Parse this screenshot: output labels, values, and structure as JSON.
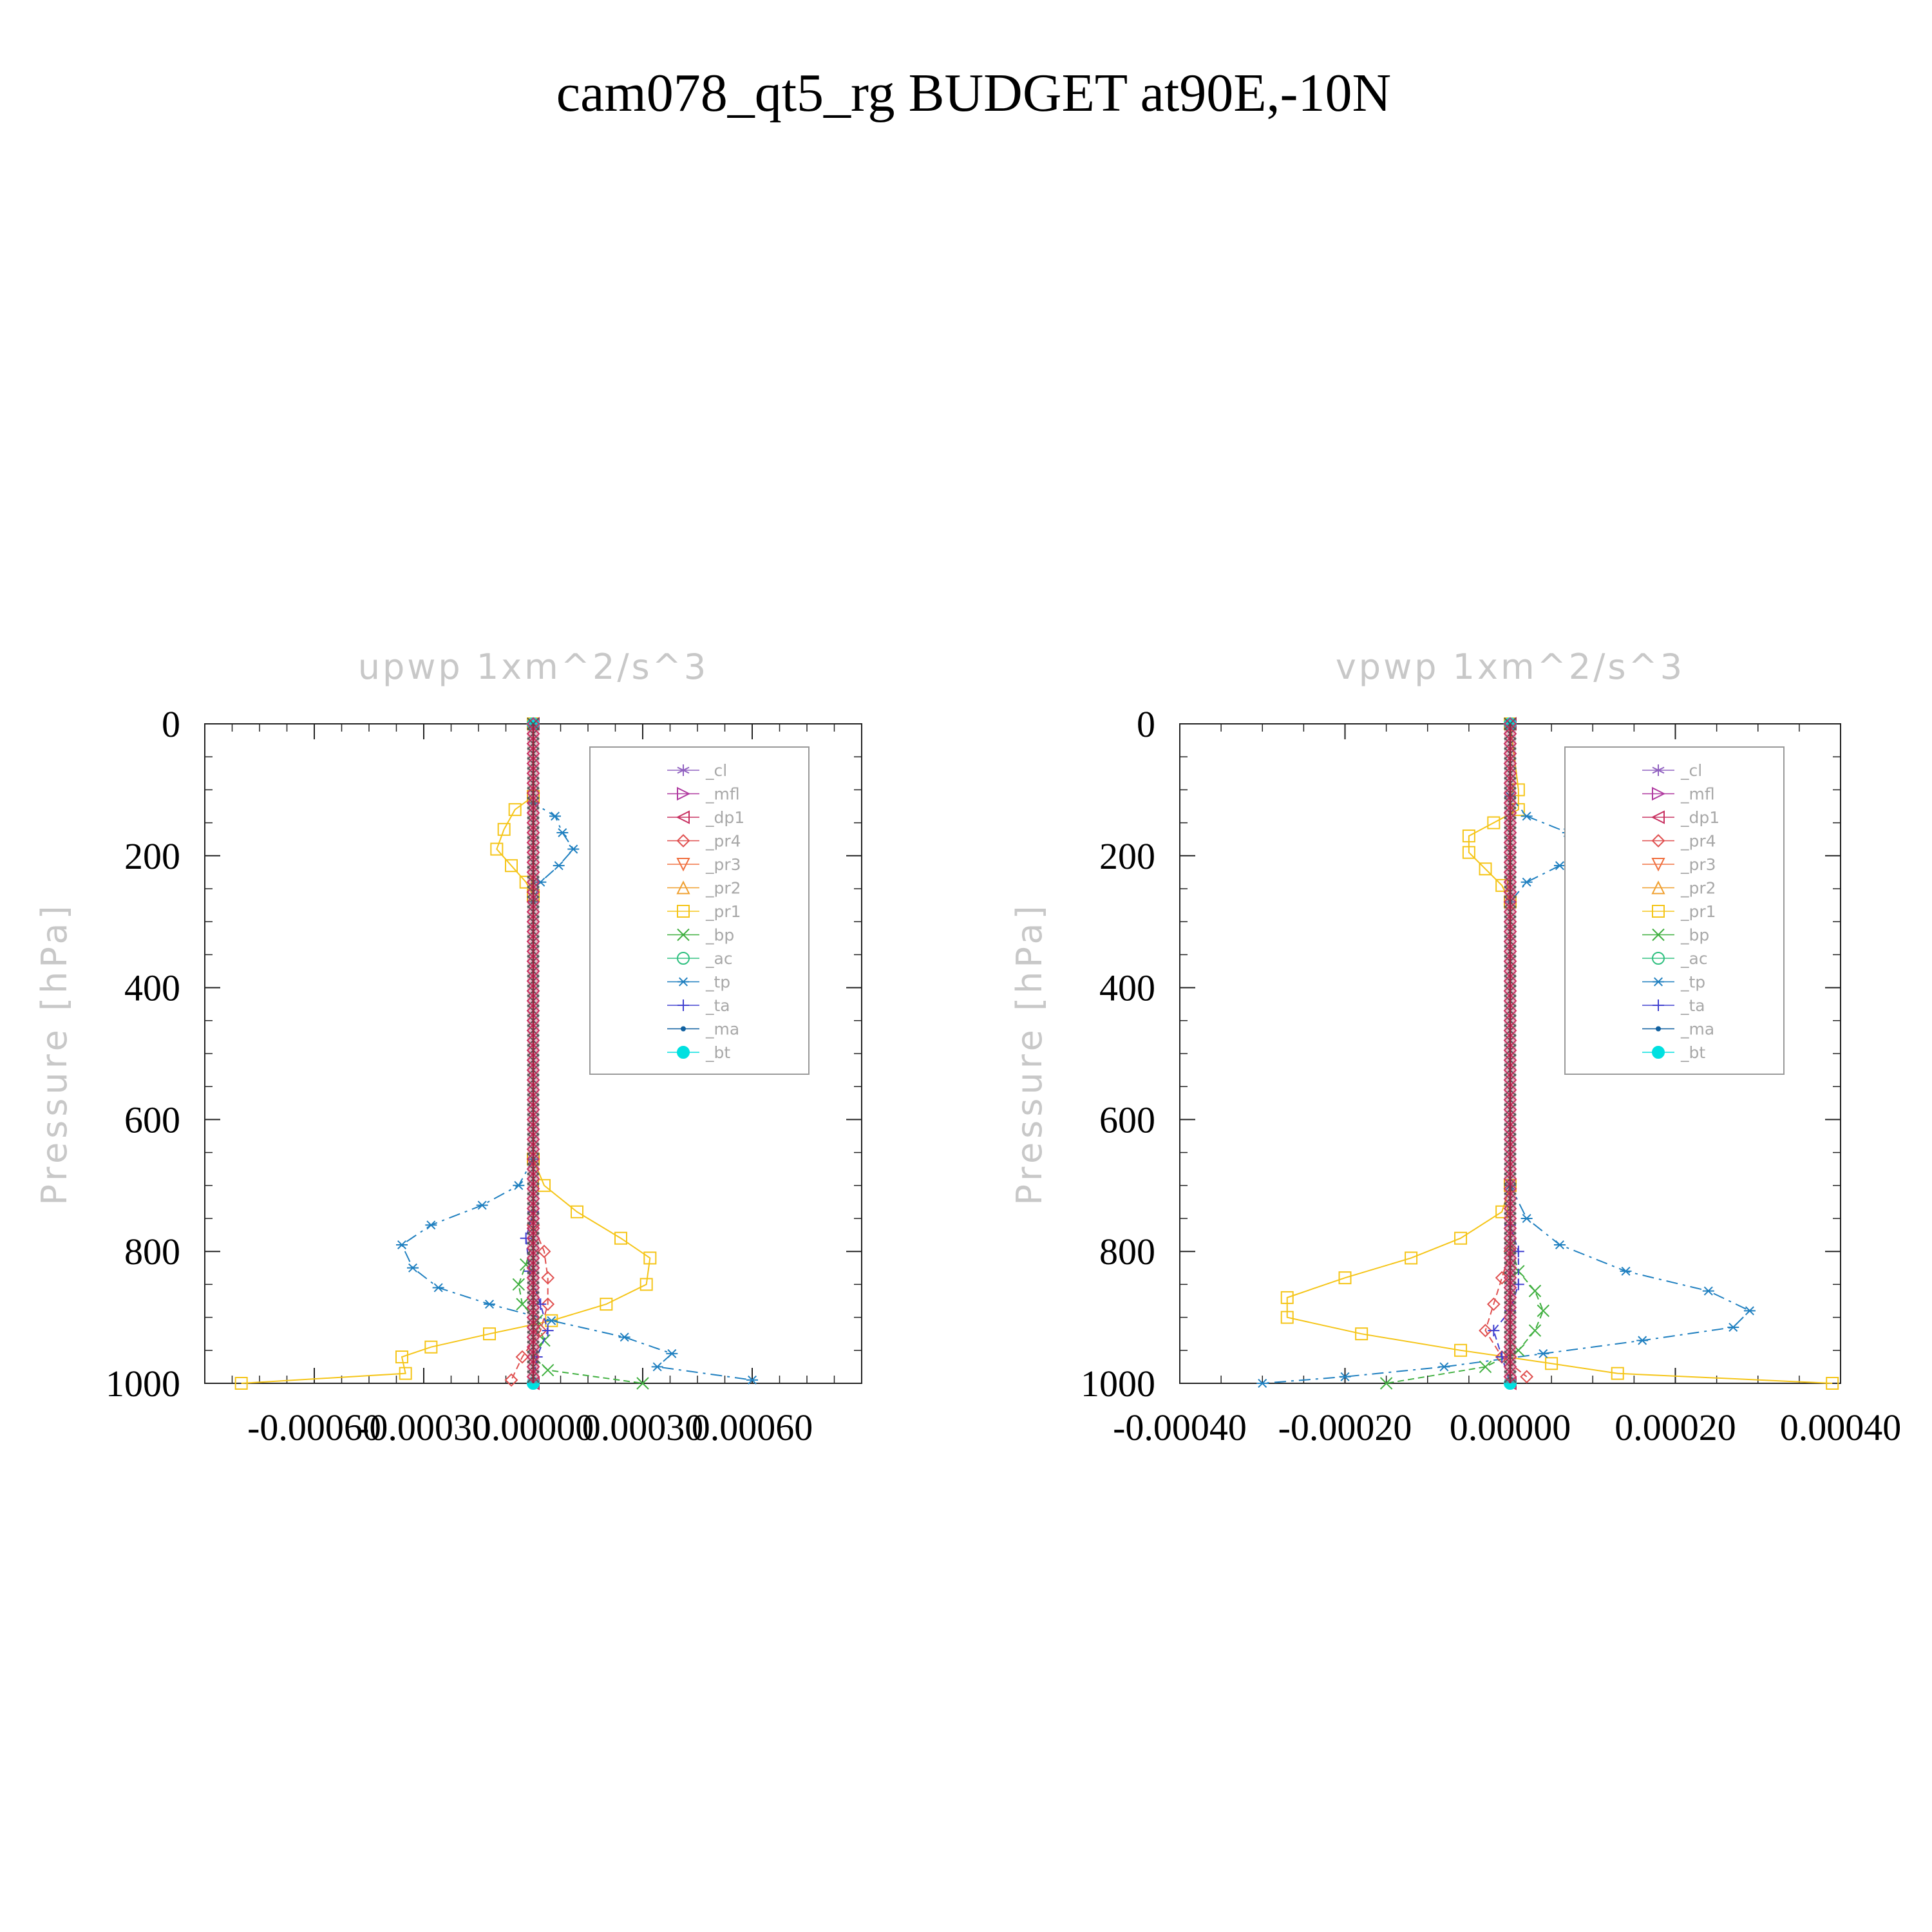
{
  "title": "cam078_qt5_rg  BUDGET at90E,-10N",
  "legend": [
    {
      "name": "_cl",
      "color": "#9060c0",
      "marker": "star"
    },
    {
      "name": "_mfl",
      "color": "#b03aa0",
      "marker": "tri-right"
    },
    {
      "name": "_dp1",
      "color": "#c83060",
      "marker": "tri-left"
    },
    {
      "name": "_pr4",
      "color": "#e05050",
      "marker": "diamond"
    },
    {
      "name": "_pr3",
      "color": "#f07040",
      "marker": "tri-down"
    },
    {
      "name": "_pr2",
      "color": "#f0a030",
      "marker": "tri-up"
    },
    {
      "name": "_pr1",
      "color": "#f5c518",
      "marker": "square"
    },
    {
      "name": "_bp",
      "color": "#40b040",
      "marker": "x"
    },
    {
      "name": "_ac",
      "color": "#30c080",
      "marker": "circle"
    },
    {
      "name": "_tp",
      "color": "#2080c0",
      "marker": "asterisk"
    },
    {
      "name": "_ta",
      "color": "#4040d0",
      "marker": "plus"
    },
    {
      "name": "_ma",
      "color": "#1060a0",
      "marker": "dot"
    },
    {
      "name": "_bt",
      "color": "#00e0e0",
      "marker": "filled-circle"
    }
  ],
  "chart_data": [
    {
      "type": "line",
      "title": "upwp   1xm^2/s^3",
      "ylabel": "Pressure [hPa]",
      "xlim": [
        -0.0009,
        0.0009
      ],
      "ylim": [
        1000,
        0
      ],
      "y_inverted": true,
      "xticks": [
        -0.0006,
        -0.0003,
        0.0,
        0.0003,
        0.0006
      ],
      "xtick_labels": [
        "-0.00060",
        "-0.00030",
        "0.00000",
        "0.00030",
        "0.00060"
      ],
      "yticks": [
        0,
        200,
        400,
        600,
        800,
        1000
      ],
      "ytick_labels": [
        "0",
        "200",
        "400",
        "600",
        "800",
        "1000"
      ],
      "legend_position": "upper-right",
      "series": [
        {
          "name": "_pr1",
          "color": "#f5c518",
          "marker": "square",
          "points": [
            [
              0,
              0
            ],
            [
              0,
              110
            ],
            [
              -5e-05,
              130
            ],
            [
              -8e-05,
              160
            ],
            [
              -0.0001,
              190
            ],
            [
              -6e-05,
              215
            ],
            [
              -2e-05,
              240
            ],
            [
              0,
              260
            ],
            [
              0,
              660
            ],
            [
              3e-05,
              700
            ],
            [
              0.00012,
              740
            ],
            [
              0.00024,
              780
            ],
            [
              0.00032,
              810
            ],
            [
              0.00031,
              850
            ],
            [
              0.0002,
              880
            ],
            [
              5e-05,
              905
            ],
            [
              -0.00012,
              925
            ],
            [
              -0.00028,
              945
            ],
            [
              -0.00036,
              960
            ],
            [
              -0.00035,
              985
            ],
            [
              -0.0008,
              1000
            ]
          ]
        },
        {
          "name": "_tp",
          "color": "#2080c0",
          "marker": "asterisk",
          "points": [
            [
              0,
              0
            ],
            [
              0,
              120
            ],
            [
              6e-05,
              140
            ],
            [
              8e-05,
              165
            ],
            [
              0.00011,
              190
            ],
            [
              7e-05,
              215
            ],
            [
              2e-05,
              240
            ],
            [
              0,
              270
            ],
            [
              0,
              660
            ],
            [
              -4e-05,
              700
            ],
            [
              -0.00014,
              730
            ],
            [
              -0.00028,
              760
            ],
            [
              -0.00036,
              790
            ],
            [
              -0.00033,
              825
            ],
            [
              -0.00026,
              855
            ],
            [
              -0.00012,
              880
            ],
            [
              5e-05,
              905
            ],
            [
              0.00025,
              930
            ],
            [
              0.00038,
              955
            ],
            [
              0.00034,
              975
            ],
            [
              0.0006,
              995
            ]
          ]
        },
        {
          "name": "_bp",
          "color": "#40b040",
          "marker": "x",
          "points": [
            [
              0,
              0
            ],
            [
              0,
              780
            ],
            [
              -2e-05,
              820
            ],
            [
              -4e-05,
              850
            ],
            [
              -3e-05,
              880
            ],
            [
              1e-05,
              905
            ],
            [
              3e-05,
              935
            ],
            [
              0.0,
              960
            ],
            [
              4e-05,
              980
            ],
            [
              0.0003,
              1000
            ]
          ]
        },
        {
          "name": "_pr4",
          "color": "#e05050",
          "marker": "diamond",
          "points": [
            [
              0,
              0
            ],
            [
              0,
              760
            ],
            [
              3e-05,
              800
            ],
            [
              4e-05,
              840
            ],
            [
              4e-05,
              880
            ],
            [
              2e-05,
              920
            ],
            [
              -3e-05,
              960
            ],
            [
              -6e-05,
              995
            ]
          ]
        },
        {
          "name": "_ta",
          "color": "#4040d0",
          "marker": "plus",
          "points": [
            [
              0,
              0
            ],
            [
              0,
              740
            ],
            [
              -2e-05,
              780
            ],
            [
              -1e-05,
              830
            ],
            [
              2e-05,
              880
            ],
            [
              4e-05,
              920
            ],
            [
              1e-05,
              960
            ],
            [
              0,
              1000
            ]
          ]
        },
        {
          "name": "_dp1",
          "color": "#c83060",
          "marker": "tri-left",
          "points": [
            [
              0,
              0
            ],
            [
              0,
              1000
            ]
          ]
        },
        {
          "name": "_bt",
          "color": "#00e0e0",
          "marker": "filled-circle",
          "points": [
            [
              0,
              0
            ],
            [
              0,
              1000
            ]
          ]
        }
      ]
    },
    {
      "type": "line",
      "title": "vpwp   1xm^2/s^3",
      "ylabel": "Pressure [hPa]",
      "xlim": [
        -0.0004,
        0.0004
      ],
      "ylim": [
        1000,
        0
      ],
      "y_inverted": true,
      "xticks": [
        -0.0004,
        -0.0002,
        0.0,
        0.0002,
        0.0004
      ],
      "xtick_labels": [
        "-0.00040",
        "-0.00020",
        "0.00000",
        "0.00020",
        "0.00040"
      ],
      "yticks": [
        0,
        200,
        400,
        600,
        800,
        1000
      ],
      "ytick_labels": [
        "0",
        "200",
        "400",
        "600",
        "800",
        "1000"
      ],
      "legend_position": "upper-right",
      "series": [
        {
          "name": "_pr1",
          "color": "#f5c518",
          "marker": "square",
          "points": [
            [
              0,
              0
            ],
            [
              1e-05,
              100
            ],
            [
              1e-05,
              130
            ],
            [
              -2e-05,
              150
            ],
            [
              -5e-05,
              170
            ],
            [
              -5e-05,
              195
            ],
            [
              -3e-05,
              220
            ],
            [
              -1e-05,
              245
            ],
            [
              0,
              270
            ],
            [
              0,
              700
            ],
            [
              -1e-05,
              740
            ],
            [
              -6e-05,
              780
            ],
            [
              -0.00012,
              810
            ],
            [
              -0.0002,
              840
            ],
            [
              -0.00027,
              870
            ],
            [
              -0.00027,
              900
            ],
            [
              -0.00018,
              925
            ],
            [
              -6e-05,
              950
            ],
            [
              5e-05,
              970
            ],
            [
              0.00013,
              985
            ],
            [
              0.00039,
              1000
            ]
          ]
        },
        {
          "name": "_tp",
          "color": "#2080c0",
          "marker": "asterisk",
          "points": [
            [
              0,
              0
            ],
            [
              0,
              110
            ],
            [
              2e-05,
              140
            ],
            [
              7e-05,
              165
            ],
            [
              9e-05,
              190
            ],
            [
              6e-05,
              215
            ],
            [
              2e-05,
              240
            ],
            [
              0,
              270
            ],
            [
              0,
              700
            ],
            [
              2e-05,
              750
            ],
            [
              6e-05,
              790
            ],
            [
              0.00014,
              830
            ],
            [
              0.00024,
              860
            ],
            [
              0.00029,
              890
            ],
            [
              0.00027,
              915
            ],
            [
              0.00016,
              935
            ],
            [
              4e-05,
              955
            ],
            [
              -8e-05,
              975
            ],
            [
              -0.0002,
              990
            ],
            [
              -0.0003,
              1000
            ]
          ]
        },
        {
          "name": "_bp",
          "color": "#40b040",
          "marker": "x",
          "points": [
            [
              0,
              0
            ],
            [
              0,
              790
            ],
            [
              1e-05,
              830
            ],
            [
              3e-05,
              860
            ],
            [
              4e-05,
              890
            ],
            [
              3e-05,
              920
            ],
            [
              1e-05,
              950
            ],
            [
              -3e-05,
              975
            ],
            [
              -0.00015,
              1000
            ]
          ]
        },
        {
          "name": "_pr4",
          "color": "#e05050",
          "marker": "diamond",
          "points": [
            [
              0,
              0
            ],
            [
              0,
              800
            ],
            [
              -1e-05,
              840
            ],
            [
              -2e-05,
              880
            ],
            [
              -3e-05,
              920
            ],
            [
              -1e-05,
              960
            ],
            [
              2e-05,
              990
            ]
          ]
        },
        {
          "name": "_ta",
          "color": "#4040d0",
          "marker": "plus",
          "points": [
            [
              0,
              0
            ],
            [
              0,
              760
            ],
            [
              1e-05,
              800
            ],
            [
              1e-05,
              850
            ],
            [
              0.0,
              890
            ],
            [
              -2e-05,
              920
            ],
            [
              -1e-05,
              960
            ],
            [
              0,
              1000
            ]
          ]
        },
        {
          "name": "_dp1",
          "color": "#c83060",
          "marker": "tri-left",
          "points": [
            [
              0,
              0
            ],
            [
              0,
              1000
            ]
          ]
        },
        {
          "name": "_bt",
          "color": "#00e0e0",
          "marker": "filled-circle",
          "points": [
            [
              0,
              0
            ],
            [
              0,
              1000
            ]
          ]
        }
      ]
    }
  ]
}
